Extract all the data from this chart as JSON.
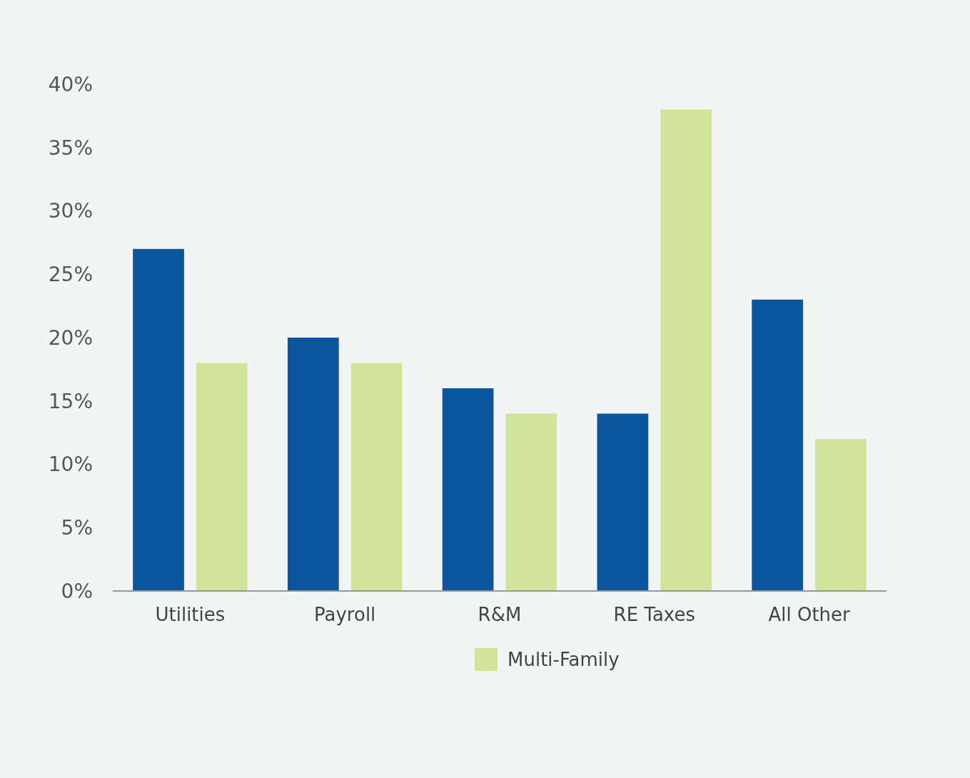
{
  "chart_data": {
    "type": "bar",
    "categories": [
      "Utilities",
      "Payroll",
      "R&M",
      "RE Taxes",
      "All Other"
    ],
    "series": [
      {
        "color": "#0b559f",
        "values": [
          27,
          20,
          16,
          14,
          23
        ]
      },
      {
        "name": "Multi-Family",
        "color": "#d0e49a",
        "values": [
          18,
          18,
          14,
          38,
          12
        ]
      }
    ],
    "ylim": [
      0,
      40
    ],
    "yticks": [
      {
        "value": 0,
        "label": "0%"
      },
      {
        "value": 5,
        "label": "5%"
      },
      {
        "value": 10,
        "label": "10%"
      },
      {
        "value": 15,
        "label": "15%"
      },
      {
        "value": 20,
        "label": "20%"
      },
      {
        "value": 25,
        "label": "25%"
      },
      {
        "value": 30,
        "label": "30%"
      },
      {
        "value": 35,
        "label": "35%"
      },
      {
        "value": 40,
        "label": "40%"
      }
    ],
    "grid": false,
    "legend": "bottom"
  }
}
